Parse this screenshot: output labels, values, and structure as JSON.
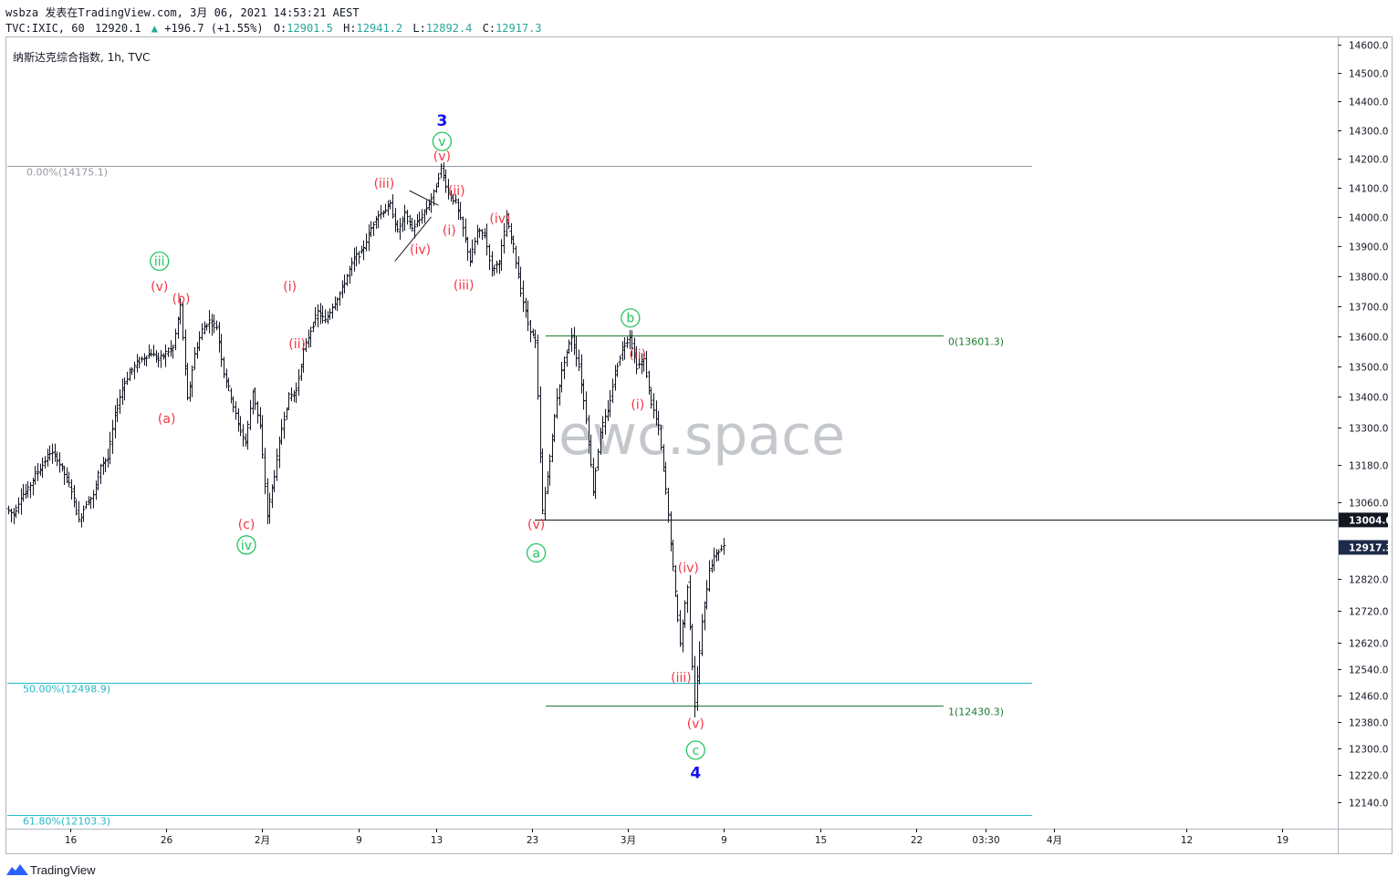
{
  "header": {
    "line1": "wsbza 发表在TradingView.com, 3月 06, 2021 14:53:21 AEST",
    "line2_symbol": "TVC:IXIC, 60",
    "line2_price": "12920.1",
    "line2_change": "+196.7 (+1.55%)",
    "o_label": "O:",
    "o_value": "12901.5",
    "h_label": "H:",
    "h_value": "12941.2",
    "l_label": "L:",
    "l_value": "12892.4",
    "c_label": "C:",
    "c_value": "12917.3"
  },
  "symbol_title": "纳斯达克综合指数, 1h, TVC",
  "watermark": "ewc.space",
  "brand": "TradingView",
  "colors": {
    "up": "#26a69a",
    "red": "#f23645",
    "green": "#22c55e",
    "blue": "#1010ee",
    "cyan": "#26b8c8",
    "darkgreen": "#1b7a2e"
  },
  "chart_data": {
    "type": "ohlc",
    "title": "纳斯达克综合指数, 1h, TVC",
    "y_axis": {
      "ticks": [
        12140,
        12220,
        12300,
        12380,
        12460,
        12540,
        12620,
        12720,
        12820,
        13060,
        13180,
        13300,
        13400,
        13500,
        13600,
        13700,
        13800,
        13900,
        14000,
        14100,
        14200,
        14300,
        14400,
        14500,
        14600
      ],
      "labels": [
        "12140.0",
        "12220.0",
        "12300.0",
        "12380.0",
        "12460.0",
        "12540.0",
        "12620.0",
        "12720.0",
        "12820.0",
        "13060.0",
        "13180.0",
        "13300.0",
        "13400.0",
        "13500.0",
        "13600.0",
        "13700.0",
        "13800.0",
        "13900.0",
        "14000.0",
        "14100.0",
        "14200.0",
        "14300.0",
        "14400.0",
        "14500.0",
        "14600.0"
      ],
      "scale": "log"
    },
    "x_axis": {
      "labels": [
        "16",
        "26",
        "2月",
        "9",
        "13",
        "23",
        "3月",
        "9",
        "15",
        "22",
        "03:30",
        "4月",
        "12",
        "19"
      ]
    },
    "price_badges": [
      {
        "value": "13004.0",
        "price": 13004.0
      },
      {
        "value": "12917.3",
        "price": 12917.3
      }
    ],
    "fib_levels": [
      {
        "label": "0.00%(14175.1)",
        "price": 14175.1
      },
      {
        "label": "50.00%(12498.9)",
        "price": 12498.9
      },
      {
        "label": "61.80%(12103.3)",
        "price": 12103.3
      },
      {
        "label": "0(13601.3)",
        "price": 13601.3
      },
      {
        "label": "1(12430.3)",
        "price": 12430.3
      }
    ],
    "horizontal_line": {
      "price": 13004.0
    },
    "price_path": [
      [
        0,
        13040
      ],
      [
        1,
        13020
      ],
      [
        2,
        13080
      ],
      [
        3,
        13100
      ],
      [
        4,
        13150
      ],
      [
        5,
        13180
      ],
      [
        6,
        13220
      ],
      [
        7,
        13200
      ],
      [
        8,
        13150
      ],
      [
        9,
        13100
      ],
      [
        10,
        13000
      ],
      [
        11,
        13060
      ],
      [
        12,
        13080
      ],
      [
        13,
        13180
      ],
      [
        14,
        13200
      ],
      [
        15,
        13340
      ],
      [
        16,
        13430
      ],
      [
        17,
        13480
      ],
      [
        18,
        13510
      ],
      [
        19,
        13530
      ],
      [
        20,
        13545
      ],
      [
        21,
        13520
      ],
      [
        22,
        13545
      ],
      [
        23,
        13560
      ],
      [
        24,
        13700
      ],
      [
        25,
        13390
      ],
      [
        26,
        13540
      ],
      [
        27,
        13620
      ],
      [
        28,
        13650
      ],
      [
        29,
        13630
      ],
      [
        30,
        13480
      ],
      [
        31,
        13400
      ],
      [
        32,
        13310
      ],
      [
        33,
        13250
      ],
      [
        34,
        13420
      ],
      [
        35,
        13300
      ],
      [
        36,
        13020
      ],
      [
        37,
        13150
      ],
      [
        38,
        13300
      ],
      [
        39,
        13400
      ],
      [
        40,
        13420
      ],
      [
        41,
        13550
      ],
      [
        42,
        13620
      ],
      [
        43,
        13680
      ],
      [
        44,
        13650
      ],
      [
        45,
        13700
      ],
      [
        46,
        13740
      ],
      [
        47,
        13800
      ],
      [
        48,
        13860
      ],
      [
        49,
        13880
      ],
      [
        50,
        13940
      ],
      [
        51,
        14000
      ],
      [
        52,
        14020
      ],
      [
        53,
        14040
      ],
      [
        54,
        13950
      ],
      [
        55,
        14010
      ],
      [
        56,
        13960
      ],
      [
        57,
        13990
      ],
      [
        58,
        14030
      ],
      [
        59,
        14080
      ],
      [
        60,
        14170
      ],
      [
        61,
        14080
      ],
      [
        62,
        14050
      ],
      [
        63,
        13960
      ],
      [
        64,
        13850
      ],
      [
        65,
        13950
      ],
      [
        66,
        13940
      ],
      [
        67,
        13820
      ],
      [
        68,
        13850
      ],
      [
        69,
        13990
      ],
      [
        70,
        13900
      ],
      [
        71,
        13750
      ],
      [
        72,
        13640
      ],
      [
        73,
        13580
      ],
      [
        74,
        13030
      ],
      [
        75,
        13200
      ],
      [
        76,
        13400
      ],
      [
        77,
        13520
      ],
      [
        78,
        13600
      ],
      [
        79,
        13500
      ],
      [
        80,
        13330
      ],
      [
        81,
        13100
      ],
      [
        82,
        13290
      ],
      [
        83,
        13350
      ],
      [
        84,
        13480
      ],
      [
        85,
        13560
      ],
      [
        86,
        13600
      ],
      [
        87,
        13500
      ],
      [
        88,
        13520
      ],
      [
        89,
        13380
      ],
      [
        90,
        13300
      ],
      [
        91,
        13100
      ],
      [
        92,
        12850
      ],
      [
        93,
        12620
      ],
      [
        94,
        12800
      ],
      [
        95,
        12430
      ],
      [
        96,
        12680
      ],
      [
        97,
        12850
      ],
      [
        98,
        12900
      ],
      [
        99,
        12920
      ]
    ],
    "wave_labels": [
      {
        "text": "3",
        "color": "blue",
        "style": "big",
        "i": 60,
        "price": 14330
      },
      {
        "text": "v",
        "color": "green",
        "style": "circle",
        "i": 60,
        "price": 14260
      },
      {
        "text": "(v)",
        "color": "red",
        "style": "plain",
        "i": 60,
        "price": 14210
      },
      {
        "text": "(iii)",
        "color": "red",
        "style": "plain",
        "i": 52,
        "price": 14115
      },
      {
        "text": "(ii)",
        "color": "red",
        "style": "plain",
        "i": 62,
        "price": 14090
      },
      {
        "text": "(i)",
        "color": "red",
        "style": "plain",
        "i": 61,
        "price": 13955
      },
      {
        "text": "(iv)",
        "color": "red",
        "style": "plain",
        "i": 57,
        "price": 13890
      },
      {
        "text": "(iv)",
        "color": "red",
        "style": "plain",
        "i": 68,
        "price": 13995
      },
      {
        "text": "(iii)",
        "color": "red",
        "style": "plain",
        "i": 63,
        "price": 13770
      },
      {
        "text": "iii",
        "color": "green",
        "style": "circle",
        "i": 21,
        "price": 13850
      },
      {
        "text": "(v)",
        "color": "red",
        "style": "plain",
        "i": 21,
        "price": 13765
      },
      {
        "text": "(b)",
        "color": "red",
        "style": "plain",
        "i": 24,
        "price": 13725
      },
      {
        "text": "(a)",
        "color": "red",
        "style": "plain",
        "i": 22,
        "price": 13330
      },
      {
        "text": "(i)",
        "color": "red",
        "style": "plain",
        "i": 39,
        "price": 13765
      },
      {
        "text": "(ii)",
        "color": "red",
        "style": "plain",
        "i": 40,
        "price": 13575
      },
      {
        "text": "(c)",
        "color": "red",
        "style": "plain",
        "i": 33,
        "price": 12990
      },
      {
        "text": "iv",
        "color": "green",
        "style": "circle",
        "i": 33,
        "price": 12925
      },
      {
        "text": "b",
        "color": "green",
        "style": "circle",
        "i": 86,
        "price": 13660
      },
      {
        "text": "(ii)",
        "color": "red",
        "style": "plain",
        "i": 87,
        "price": 13540
      },
      {
        "text": "(i)",
        "color": "red",
        "style": "plain",
        "i": 87,
        "price": 13375
      },
      {
        "text": "(v)",
        "color": "red",
        "style": "plain",
        "i": 73,
        "price": 12990
      },
      {
        "text": "a",
        "color": "green",
        "style": "circle",
        "i": 73,
        "price": 12900
      },
      {
        "text": "(iv)",
        "color": "red",
        "style": "plain",
        "i": 94,
        "price": 12855
      },
      {
        "text": "(iii)",
        "color": "red",
        "style": "plain",
        "i": 93,
        "price": 12515
      },
      {
        "text": "(v)",
        "color": "red",
        "style": "plain",
        "i": 95,
        "price": 12375
      },
      {
        "text": "c",
        "color": "green",
        "style": "circle",
        "i": 95,
        "price": 12295
      },
      {
        "text": "4",
        "color": "blue",
        "style": "big",
        "i": 95,
        "price": 12225
      }
    ]
  }
}
